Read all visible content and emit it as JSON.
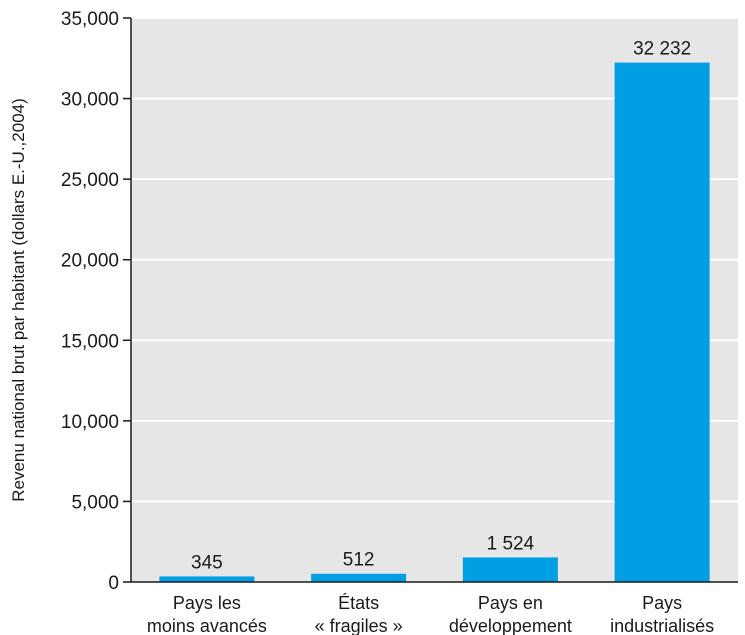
{
  "chart_data": {
    "type": "bar",
    "ylabel": "Revenu national brut par habitant (dollars E.-U.,2004)",
    "ylim": [
      0,
      35000
    ],
    "yticks": [
      0,
      5000,
      10000,
      15000,
      20000,
      25000,
      30000,
      35000
    ],
    "ytick_labels": [
      "0",
      "5,000",
      "10,000",
      "15,000",
      "20,000",
      "25,000",
      "30,000",
      "35,000"
    ],
    "categories": [
      [
        "Pays les",
        "moins avancés"
      ],
      [
        "États",
        "« fragiles »"
      ],
      [
        "Pays en",
        "développement"
      ],
      [
        "Pays",
        "industrialisés"
      ]
    ],
    "values": [
      345,
      512,
      1524,
      32232
    ],
    "value_labels": [
      "345",
      "512",
      "1 524",
      "32 232"
    ],
    "grid": true,
    "colors": {
      "bar": "#009fe3",
      "plot_background": "#e6e6e7",
      "grid": "#ffffff",
      "axis": "#1a1a1a"
    }
  }
}
